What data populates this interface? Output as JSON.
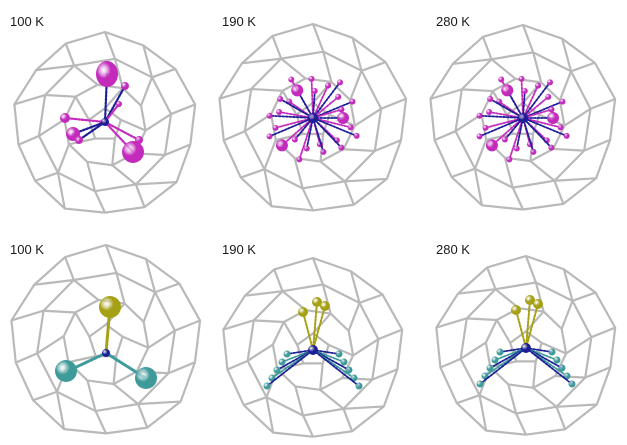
{
  "figure": {
    "colors": {
      "cage": "#b9b9b9",
      "cage_dark": "#8e8e8e",
      "center_atom": "#1c1e96",
      "top_atoms": "#c42bbd",
      "yellow_atom": "#a6a014",
      "teal_atom": "#3f9a9a"
    },
    "panels": [
      {
        "label": "100 K",
        "row": "top",
        "style": "ordered"
      },
      {
        "label": "190 K",
        "row": "top",
        "style": "disordered"
      },
      {
        "label": "280 K",
        "row": "top",
        "style": "disordered"
      },
      {
        "label": "100 K",
        "row": "bottom",
        "style": "ordered"
      },
      {
        "label": "190 K",
        "row": "bottom",
        "style": "disordered"
      },
      {
        "label": "280 K",
        "row": "bottom",
        "style": "disordered"
      }
    ]
  }
}
